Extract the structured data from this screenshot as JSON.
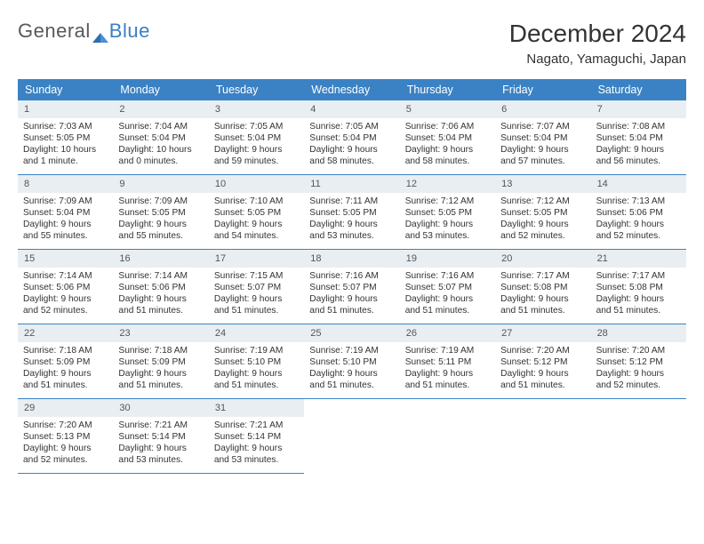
{
  "logo": {
    "text_general": "General",
    "text_blue": "Blue"
  },
  "title": "December 2024",
  "location": "Nagato, Yamaguchi, Japan",
  "colors": {
    "header_bg": "#3b82c4",
    "header_text": "#ffffff",
    "daynum_bg": "#e9eef2",
    "cell_border": "#3b82c4",
    "body_text": "#333333",
    "logo_gray": "#58595b",
    "logo_blue": "#3b7fc4"
  },
  "weekdays": [
    "Sunday",
    "Monday",
    "Tuesday",
    "Wednesday",
    "Thursday",
    "Friday",
    "Saturday"
  ],
  "days": [
    {
      "n": "1",
      "sr": "7:03 AM",
      "ss": "5:05 PM",
      "dl": "10 hours and 1 minute."
    },
    {
      "n": "2",
      "sr": "7:04 AM",
      "ss": "5:04 PM",
      "dl": "10 hours and 0 minutes."
    },
    {
      "n": "3",
      "sr": "7:05 AM",
      "ss": "5:04 PM",
      "dl": "9 hours and 59 minutes."
    },
    {
      "n": "4",
      "sr": "7:05 AM",
      "ss": "5:04 PM",
      "dl": "9 hours and 58 minutes."
    },
    {
      "n": "5",
      "sr": "7:06 AM",
      "ss": "5:04 PM",
      "dl": "9 hours and 58 minutes."
    },
    {
      "n": "6",
      "sr": "7:07 AM",
      "ss": "5:04 PM",
      "dl": "9 hours and 57 minutes."
    },
    {
      "n": "7",
      "sr": "7:08 AM",
      "ss": "5:04 PM",
      "dl": "9 hours and 56 minutes."
    },
    {
      "n": "8",
      "sr": "7:09 AM",
      "ss": "5:04 PM",
      "dl": "9 hours and 55 minutes."
    },
    {
      "n": "9",
      "sr": "7:09 AM",
      "ss": "5:05 PM",
      "dl": "9 hours and 55 minutes."
    },
    {
      "n": "10",
      "sr": "7:10 AM",
      "ss": "5:05 PM",
      "dl": "9 hours and 54 minutes."
    },
    {
      "n": "11",
      "sr": "7:11 AM",
      "ss": "5:05 PM",
      "dl": "9 hours and 53 minutes."
    },
    {
      "n": "12",
      "sr": "7:12 AM",
      "ss": "5:05 PM",
      "dl": "9 hours and 53 minutes."
    },
    {
      "n": "13",
      "sr": "7:12 AM",
      "ss": "5:05 PM",
      "dl": "9 hours and 52 minutes."
    },
    {
      "n": "14",
      "sr": "7:13 AM",
      "ss": "5:06 PM",
      "dl": "9 hours and 52 minutes."
    },
    {
      "n": "15",
      "sr": "7:14 AM",
      "ss": "5:06 PM",
      "dl": "9 hours and 52 minutes."
    },
    {
      "n": "16",
      "sr": "7:14 AM",
      "ss": "5:06 PM",
      "dl": "9 hours and 51 minutes."
    },
    {
      "n": "17",
      "sr": "7:15 AM",
      "ss": "5:07 PM",
      "dl": "9 hours and 51 minutes."
    },
    {
      "n": "18",
      "sr": "7:16 AM",
      "ss": "5:07 PM",
      "dl": "9 hours and 51 minutes."
    },
    {
      "n": "19",
      "sr": "7:16 AM",
      "ss": "5:07 PM",
      "dl": "9 hours and 51 minutes."
    },
    {
      "n": "20",
      "sr": "7:17 AM",
      "ss": "5:08 PM",
      "dl": "9 hours and 51 minutes."
    },
    {
      "n": "21",
      "sr": "7:17 AM",
      "ss": "5:08 PM",
      "dl": "9 hours and 51 minutes."
    },
    {
      "n": "22",
      "sr": "7:18 AM",
      "ss": "5:09 PM",
      "dl": "9 hours and 51 minutes."
    },
    {
      "n": "23",
      "sr": "7:18 AM",
      "ss": "5:09 PM",
      "dl": "9 hours and 51 minutes."
    },
    {
      "n": "24",
      "sr": "7:19 AM",
      "ss": "5:10 PM",
      "dl": "9 hours and 51 minutes."
    },
    {
      "n": "25",
      "sr": "7:19 AM",
      "ss": "5:10 PM",
      "dl": "9 hours and 51 minutes."
    },
    {
      "n": "26",
      "sr": "7:19 AM",
      "ss": "5:11 PM",
      "dl": "9 hours and 51 minutes."
    },
    {
      "n": "27",
      "sr": "7:20 AM",
      "ss": "5:12 PM",
      "dl": "9 hours and 51 minutes."
    },
    {
      "n": "28",
      "sr": "7:20 AM",
      "ss": "5:12 PM",
      "dl": "9 hours and 52 minutes."
    },
    {
      "n": "29",
      "sr": "7:20 AM",
      "ss": "5:13 PM",
      "dl": "9 hours and 52 minutes."
    },
    {
      "n": "30",
      "sr": "7:21 AM",
      "ss": "5:14 PM",
      "dl": "9 hours and 53 minutes."
    },
    {
      "n": "31",
      "sr": "7:21 AM",
      "ss": "5:14 PM",
      "dl": "9 hours and 53 minutes."
    }
  ],
  "labels": {
    "sunrise": "Sunrise: ",
    "sunset": "Sunset: ",
    "daylight": "Daylight: "
  },
  "calendar": {
    "start_offset": 0,
    "total_cells": 35
  }
}
